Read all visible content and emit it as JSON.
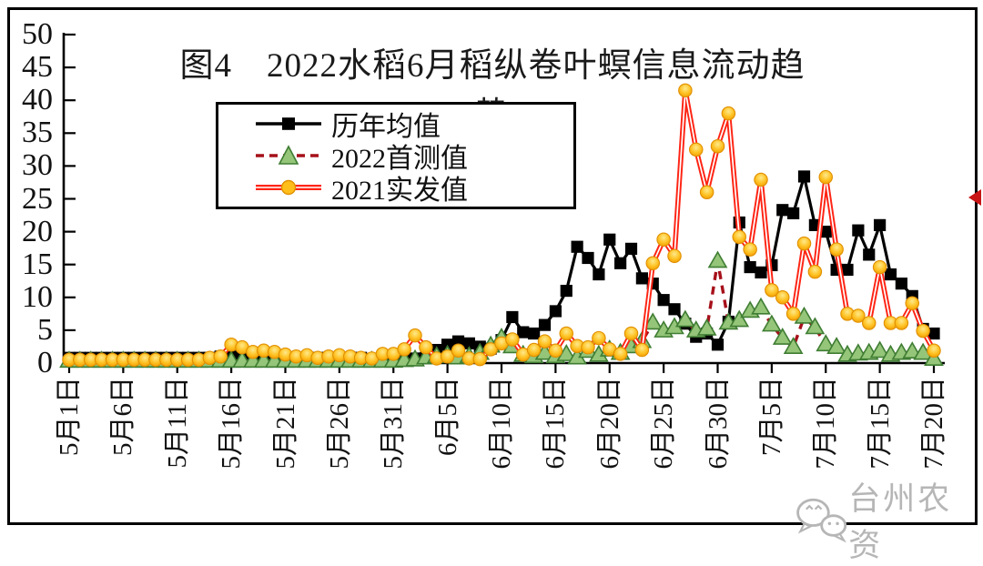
{
  "figure": {
    "title_line1": "图4　2022水稻6月稻纵卷叶螟信息流动趋",
    "title_line2": "势",
    "watermark_text": "台州农资"
  },
  "legend": {
    "items": [
      {
        "key": "historical-mean",
        "label": "历年均值"
      },
      {
        "key": "first-2022",
        "label": "2022首测值"
      },
      {
        "key": "actual-2021",
        "label": "2021实发值"
      }
    ]
  },
  "chart_data": {
    "type": "line",
    "title": "图4 2022水稻6月稻纵卷叶螟信息流动趋势",
    "x_unit": "day",
    "x_interval_days": 1,
    "x_tick_every_days": 5,
    "x_tick_labels": [
      "5月1日",
      "5月6日",
      "5月11日",
      "5月16日",
      "5月21日",
      "5月26日",
      "5月31日",
      "6月5日",
      "6月10日",
      "6月15日",
      "6月20日",
      "6月25日",
      "6月30日",
      "7月5日",
      "7月10日",
      "7月15日",
      "7月20日"
    ],
    "ylim": [
      0,
      50
    ],
    "y_ticks": [
      0,
      5,
      10,
      15,
      20,
      25,
      30,
      35,
      40,
      45,
      50
    ],
    "grid": false,
    "legend_position": "upper-left-inside",
    "colors": {
      "historical_mean": "#000000",
      "first_2022_line": "#a6101a",
      "first_2022_marker": "#94c579",
      "actual_2021_line": "#ff2414",
      "actual_2021_marker": "#ffbe1a"
    },
    "series": [
      {
        "key": "historical-mean",
        "name": "历年均值",
        "line": "solid",
        "marker": "square",
        "color": "#000000",
        "values": [
          0.8,
          0.8,
          0.8,
          0.8,
          0.8,
          0.8,
          0.8,
          0.8,
          0.8,
          0.8,
          0.8,
          0.8,
          0.8,
          0.8,
          1.0,
          1.0,
          1.0,
          0.8,
          0.8,
          0.8,
          0.8,
          0.8,
          0.8,
          0.8,
          0.8,
          0.8,
          0.8,
          0.8,
          0.6,
          0.6,
          0.6,
          0.6,
          0.7,
          0.8,
          2.0,
          2.8,
          3.3,
          3.0,
          2.5,
          2.2,
          3.5,
          7.0,
          4.7,
          4.5,
          5.8,
          7.9,
          11.0,
          17.7,
          16.0,
          13.5,
          18.8,
          15.2,
          17.4,
          12.9,
          12.1,
          9.6,
          8.2,
          6.0,
          4.0,
          4.5,
          2.8,
          6.3,
          21.4,
          14.6,
          13.8,
          14.9,
          23.3,
          22.8,
          28.4,
          21.0,
          20.0,
          14.2,
          14.2,
          20.2,
          16.5,
          21.0,
          13.5,
          12.1,
          10.2,
          5.2,
          4.5
        ]
      },
      {
        "key": "first-2022",
        "name": "2022首测值",
        "line": "dashed",
        "marker": "triangle",
        "color": "#a6101a",
        "marker_fill": "#94c579",
        "values": [
          0.3,
          0.3,
          0.3,
          0.3,
          0.3,
          0.3,
          0.3,
          0.3,
          0.3,
          0.3,
          0.3,
          0.3,
          0.3,
          0.3,
          0.3,
          0.3,
          0.3,
          0.3,
          0.3,
          0.3,
          0.3,
          0.3,
          0.3,
          0.3,
          0.3,
          0.3,
          0.3,
          0.3,
          0.3,
          0.3,
          0.3,
          0.4,
          0.5,
          0.8,
          1.0,
          1.2,
          0.8,
          1.0,
          1.5,
          2.6,
          3.8,
          2.5,
          1.2,
          1.0,
          1.5,
          1.0,
          1.3,
          0.8,
          1.8,
          1.2,
          2.0,
          1.5,
          2.5,
          3.3,
          6.1,
          4.9,
          5.4,
          6.5,
          4.9,
          5.2,
          15.5,
          6.1,
          6.5,
          7.9,
          8.4,
          5.8,
          3.8,
          2.4,
          7.0,
          5.4,
          2.8,
          2.4,
          1.2,
          1.4,
          1.5,
          1.8,
          1.2,
          1.5,
          1.7,
          1.5,
          0.6
        ]
      },
      {
        "key": "actual-2021",
        "name": "2021实发值",
        "line": "solid-thick",
        "marker": "circle",
        "color": "#ff2414",
        "marker_fill": "#ffbe1a",
        "values": [
          0.5,
          0.5,
          0.5,
          0.5,
          0.5,
          0.5,
          0.5,
          0.5,
          0.5,
          0.5,
          0.5,
          0.5,
          0.5,
          0.8,
          1.0,
          2.8,
          2.4,
          1.7,
          1.9,
          1.7,
          1.3,
          1.0,
          1.2,
          0.8,
          1.0,
          1.2,
          1.0,
          0.8,
          0.7,
          1.4,
          1.4,
          2.1,
          4.2,
          2.4,
          0.7,
          1.0,
          1.9,
          0.7,
          0.6,
          2.1,
          3.0,
          3.6,
          1.3,
          2.0,
          3.3,
          1.9,
          4.5,
          2.6,
          2.4,
          3.8,
          2.1,
          1.4,
          4.5,
          2.0,
          15.2,
          18.8,
          16.3,
          41.5,
          32.5,
          26.0,
          33.0,
          38.0,
          19.2,
          17.3,
          27.9,
          11.1,
          10.0,
          7.5,
          18.2,
          13.9,
          28.3,
          17.3,
          7.5,
          7.2,
          6.1,
          14.6,
          6.1,
          6.1,
          9.1,
          4.9,
          1.9
        ]
      }
    ]
  }
}
